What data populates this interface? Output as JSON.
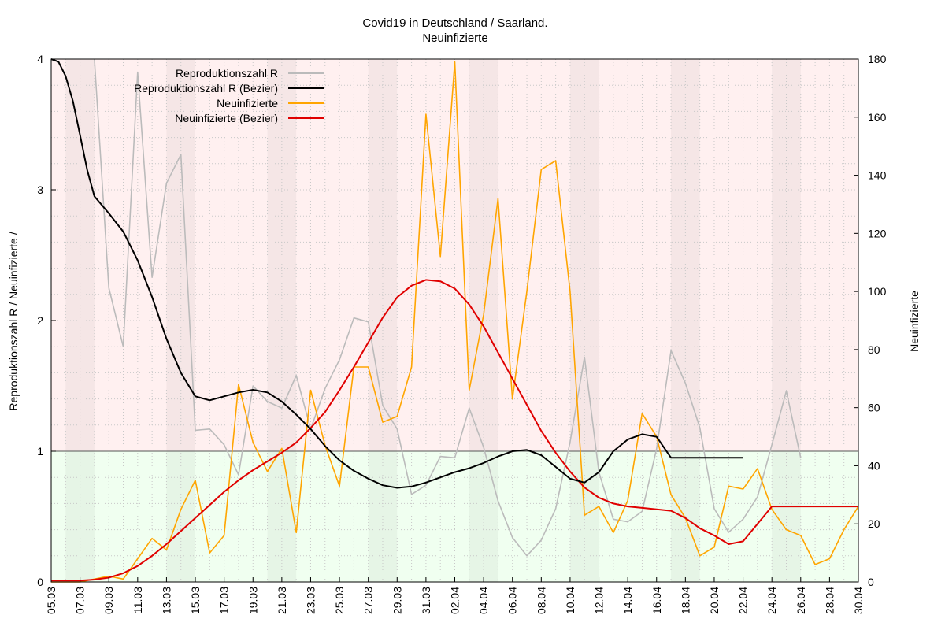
{
  "chart_data": {
    "type": "line",
    "title": "Covid19 in Deutschland / Saarland.",
    "subtitle": "Neuinfizierte",
    "ylabel": "Reproduktionszahl R / Neuinfizierte /",
    "y2label": "Neuinfizierte",
    "ylim": [
      0,
      4
    ],
    "y2lim": [
      0,
      180
    ],
    "y_ticks": [
      "0",
      "1",
      "2",
      "3",
      "4"
    ],
    "y2_ticks": [
      "0",
      "20",
      "40",
      "60",
      "80",
      "100",
      "120",
      "140",
      "160",
      "180"
    ],
    "x_ticks": [
      "05.03",
      "07.03",
      "09.03",
      "11.03",
      "13.03",
      "15.03",
      "17.03",
      "19.03",
      "21.03",
      "23.03",
      "25.03",
      "27.03",
      "29.03",
      "31.03",
      "02.04",
      "04.04",
      "06.04",
      "08.04",
      "10.04",
      "12.04",
      "14.04",
      "16.04",
      "18.04",
      "20.04",
      "22.04",
      "24.04",
      "26.04",
      "28.04",
      "30.04"
    ],
    "x_days": [
      0,
      56
    ],
    "threshold_R": 1,
    "grid": true,
    "legend_position": "top-left",
    "colors": {
      "above_threshold_bg": "#fff0f0",
      "below_threshold_bg": "#f0fff0",
      "weekend_above": "#f5e6e6",
      "weekend_below": "#e6f5e6"
    },
    "weekend_day_ranges": [
      [
        1,
        3
      ],
      [
        8,
        10
      ],
      [
        15,
        17
      ],
      [
        22,
        24
      ],
      [
        29,
        31
      ],
      [
        36,
        38
      ],
      [
        43,
        45
      ],
      [
        50,
        52
      ]
    ],
    "series": [
      {
        "name": "Reproduktionszahl R",
        "axis": "left",
        "color": "#bbbbbb",
        "x": [
          3,
          4,
          5,
          6,
          7,
          8,
          9,
          10,
          11,
          12,
          13,
          14,
          15,
          16,
          17,
          18,
          19,
          20,
          21,
          22,
          23,
          24,
          25,
          26,
          27,
          28,
          29,
          30,
          31,
          32,
          33,
          34,
          35,
          36,
          37,
          38,
          39,
          40,
          41,
          42,
          43,
          44,
          45,
          46,
          47,
          48,
          49,
          50,
          51,
          52
        ],
        "y": [
          4.0,
          2.25,
          1.8,
          3.9,
          2.33,
          3.05,
          3.27,
          1.16,
          1.17,
          1.05,
          0.82,
          1.5,
          1.38,
          1.33,
          1.58,
          1.17,
          1.48,
          1.7,
          2.02,
          1.99,
          1.35,
          1.17,
          0.67,
          0.74,
          0.96,
          0.95,
          1.33,
          1.03,
          0.62,
          0.34,
          0.2,
          0.32,
          0.56,
          1.07,
          1.72,
          0.84,
          0.48,
          0.46,
          0.54,
          1.02,
          1.77,
          1.52,
          1.18,
          0.56,
          0.38,
          0.48,
          0.65,
          1.05,
          1.46,
          0.95
        ]
      },
      {
        "name": "Reproduktionszahl R (Bezier)",
        "axis": "left",
        "color": "#000000",
        "x": [
          0,
          0.5,
          1,
          1.5,
          2,
          2.5,
          3,
          4,
          5,
          6,
          7,
          8,
          9,
          10,
          11,
          12,
          13,
          14,
          15,
          16,
          17,
          18,
          19,
          20,
          21,
          22,
          23,
          24,
          25,
          26,
          27,
          28,
          29,
          30,
          31,
          32,
          33,
          34,
          35,
          36,
          37,
          38,
          39,
          40,
          41,
          42,
          43,
          43.5,
          44,
          44.5,
          45,
          45.5,
          46,
          46.5,
          47,
          47.5,
          48
        ],
        "y": [
          4.0,
          3.98,
          3.87,
          3.68,
          3.42,
          3.15,
          2.95,
          2.82,
          2.68,
          2.46,
          2.18,
          1.86,
          1.6,
          1.42,
          1.39,
          1.42,
          1.45,
          1.47,
          1.45,
          1.38,
          1.28,
          1.17,
          1.04,
          0.93,
          0.85,
          0.79,
          0.74,
          0.72,
          0.73,
          0.76,
          0.8,
          0.84,
          0.87,
          0.91,
          0.96,
          1.0,
          1.01,
          0.97,
          0.88,
          0.79,
          0.76,
          0.84,
          1.0,
          1.09,
          1.13,
          1.11,
          0.95,
          0.95,
          0.95,
          0.95,
          0.95,
          0.95,
          0.95,
          0.95,
          0.95,
          0.95,
          0.95
        ]
      },
      {
        "name": "Neuinfizierte",
        "axis": "right",
        "color": "#ffa500",
        "x": [
          0,
          1,
          2,
          3,
          4,
          5,
          6,
          7,
          8,
          9,
          10,
          11,
          12,
          13,
          14,
          15,
          16,
          17,
          18,
          19,
          20,
          21,
          22,
          23,
          24,
          25,
          26,
          27,
          28,
          29,
          30,
          31,
          32,
          33,
          34,
          35,
          36,
          37,
          38,
          39,
          40,
          41,
          42,
          43,
          44,
          45,
          46,
          47,
          48,
          49,
          50,
          51,
          52,
          53,
          54,
          55,
          56
        ],
        "y": [
          0,
          0,
          0,
          1,
          2,
          1,
          8,
          15,
          11,
          25,
          35,
          10,
          16,
          68,
          48,
          38,
          46,
          17,
          66,
          47,
          33,
          74,
          74,
          55,
          57,
          74,
          161,
          112,
          179,
          66,
          92,
          132,
          63,
          100,
          142,
          145,
          100,
          23,
          26,
          17,
          28,
          58,
          50,
          30,
          22,
          9,
          12,
          33,
          32,
          39,
          25,
          18,
          16,
          6,
          8,
          18,
          26
        ]
      },
      {
        "name": "Neuinfizierte (Bezier)",
        "axis": "right",
        "color": "#e00000",
        "x": [
          0,
          1,
          2,
          3,
          4,
          5,
          6,
          7,
          8,
          9,
          10,
          11,
          12,
          13,
          14,
          15,
          16,
          17,
          18,
          19,
          20,
          21,
          22,
          23,
          24,
          25,
          26,
          27,
          28,
          29,
          30,
          31,
          32,
          33,
          34,
          35,
          36,
          37,
          38,
          39,
          40,
          41,
          42,
          43,
          44,
          45,
          46,
          47,
          48,
          49,
          50,
          51,
          52,
          53,
          54,
          55,
          56
        ],
        "y": [
          0.5,
          0.5,
          0.5,
          0.8,
          1.5,
          3,
          5.5,
          9,
          13,
          17.5,
          22,
          26.5,
          31,
          35,
          38.5,
          41.5,
          44.5,
          48,
          53,
          58.5,
          66,
          74,
          82.5,
          91,
          98,
          102,
          104,
          103.5,
          101,
          95.5,
          88,
          79,
          70,
          61,
          52,
          44.5,
          38,
          32.5,
          29,
          27,
          26,
          25.5,
          25,
          24.5,
          22,
          18.5,
          16,
          13,
          14,
          20,
          26,
          26,
          26,
          26,
          26,
          26,
          26
        ]
      }
    ]
  }
}
